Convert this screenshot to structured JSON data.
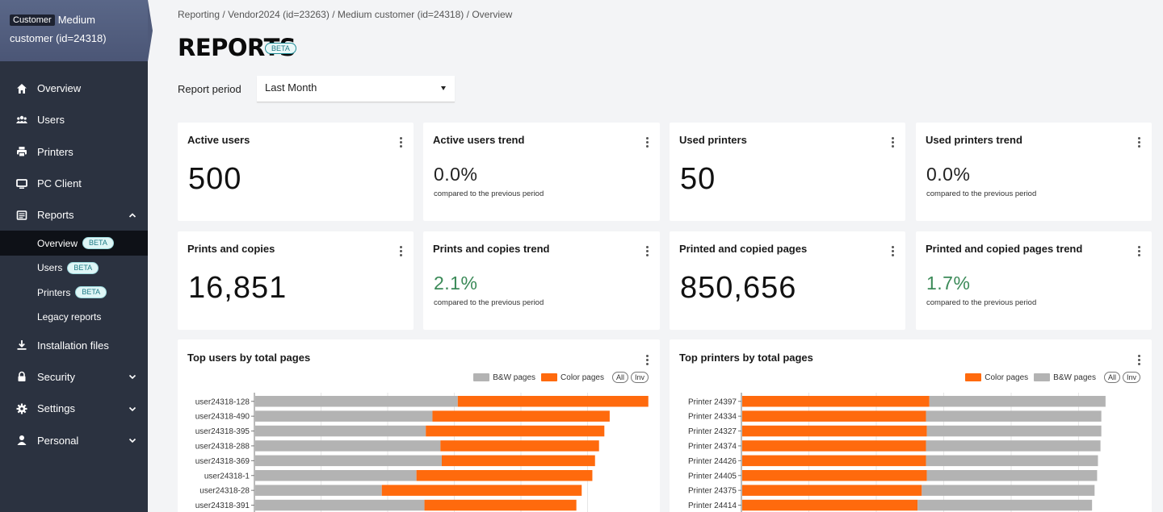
{
  "sidebar": {
    "customer_badge": "Customer",
    "customer_name": "Medium customer (id=24318)",
    "items": [
      {
        "label": "Overview",
        "icon": "home-icon"
      },
      {
        "label": "Users",
        "icon": "users-icon"
      },
      {
        "label": "Printers",
        "icon": "printer-icon"
      },
      {
        "label": "PC Client",
        "icon": "monitor-icon"
      },
      {
        "label": "Reports",
        "icon": "reports-icon"
      }
    ],
    "reports_sub": [
      {
        "label": "Overview",
        "beta": "BETA"
      },
      {
        "label": "Users",
        "beta": "BETA"
      },
      {
        "label": "Printers",
        "beta": "BETA"
      },
      {
        "label": "Legacy reports",
        "beta": ""
      }
    ],
    "items_bottom": [
      {
        "label": "Installation files",
        "icon": "download-icon"
      },
      {
        "label": "Security",
        "icon": "lock-icon"
      },
      {
        "label": "Settings",
        "icon": "gear-icon"
      },
      {
        "label": "Personal",
        "icon": "person-icon"
      }
    ]
  },
  "breadcrumb": {
    "parts": [
      "Reporting",
      "Vendor2024 (id=23263)",
      "Medium customer (id=24318)",
      "Overview"
    ],
    "sep": "/"
  },
  "page": {
    "title": "REPORTS",
    "beta": "BETA"
  },
  "period": {
    "label": "Report period",
    "value": "Last Month"
  },
  "cards": [
    {
      "title": "Active users",
      "value": "500",
      "kind": "big"
    },
    {
      "title": "Active users trend",
      "value": "0.0%",
      "sub": "compared to the previous period",
      "kind": "trend",
      "positive": false
    },
    {
      "title": "Used printers",
      "value": "50",
      "kind": "big"
    },
    {
      "title": "Used printers trend",
      "value": "0.0%",
      "sub": "compared to the previous period",
      "kind": "trend",
      "positive": false
    },
    {
      "title": "Prints and copies",
      "value": "16,851",
      "kind": "big"
    },
    {
      "title": "Prints and copies trend",
      "value": "2.1%",
      "sub": "compared to the previous period",
      "kind": "trend",
      "positive": true
    },
    {
      "title": "Printed and copied pages",
      "value": "850,656",
      "kind": "big"
    },
    {
      "title": "Printed and copied pages trend",
      "value": "1.7%",
      "sub": "compared to the previous period",
      "kind": "trend",
      "positive": true
    }
  ],
  "colors": {
    "bw": "#b3b3b3",
    "color": "#ff6a0d",
    "positive": "#3b8a58"
  },
  "chart_data": [
    {
      "type": "bar",
      "title": "Top users by total pages",
      "orientation": "horizontal-stacked",
      "legend": [
        {
          "label": "B&W pages",
          "key": "bw"
        },
        {
          "label": "Color pages",
          "key": "color"
        }
      ],
      "legend_pills": [
        "All",
        "Inv"
      ],
      "categories": [
        "user24318-128",
        "user24318-490",
        "user24318-395",
        "user24318-288",
        "user24318-369",
        "user24318-1",
        "user24318-28",
        "user24318-391"
      ],
      "series": [
        {
          "name": "B&W pages",
          "key": "bw",
          "values": [
            1520,
            1330,
            1280,
            1390,
            1400,
            1210,
            950,
            1270
          ]
        },
        {
          "name": "Color pages",
          "key": "color",
          "values": [
            1430,
            1330,
            1340,
            1190,
            1150,
            1320,
            1500,
            1140
          ]
        }
      ],
      "order": [
        "bw",
        "color"
      ],
      "xlim": [
        0,
        3000
      ]
    },
    {
      "type": "bar",
      "title": "Top printers by total pages",
      "orientation": "horizontal-stacked",
      "legend": [
        {
          "label": "Color pages",
          "key": "color"
        },
        {
          "label": "B&W pages",
          "key": "bw"
        }
      ],
      "legend_pills": [
        "All",
        "Inv"
      ],
      "categories": [
        "Printer 24397",
        "Printer 24334",
        "Printer 24327",
        "Printer 24374",
        "Printer 24426",
        "Printer 24405",
        "Printer 24375",
        "Printer 24414"
      ],
      "series": [
        {
          "name": "Color pages",
          "key": "color",
          "values": [
            11100,
            10900,
            10950,
            10900,
            10900,
            10950,
            10650,
            10400
          ]
        },
        {
          "name": "B&W pages",
          "key": "bw",
          "values": [
            10450,
            10400,
            10350,
            10350,
            10200,
            10100,
            10250,
            10350
          ]
        }
      ],
      "order": [
        "color",
        "bw"
      ],
      "xlim": [
        0,
        24000
      ]
    }
  ]
}
